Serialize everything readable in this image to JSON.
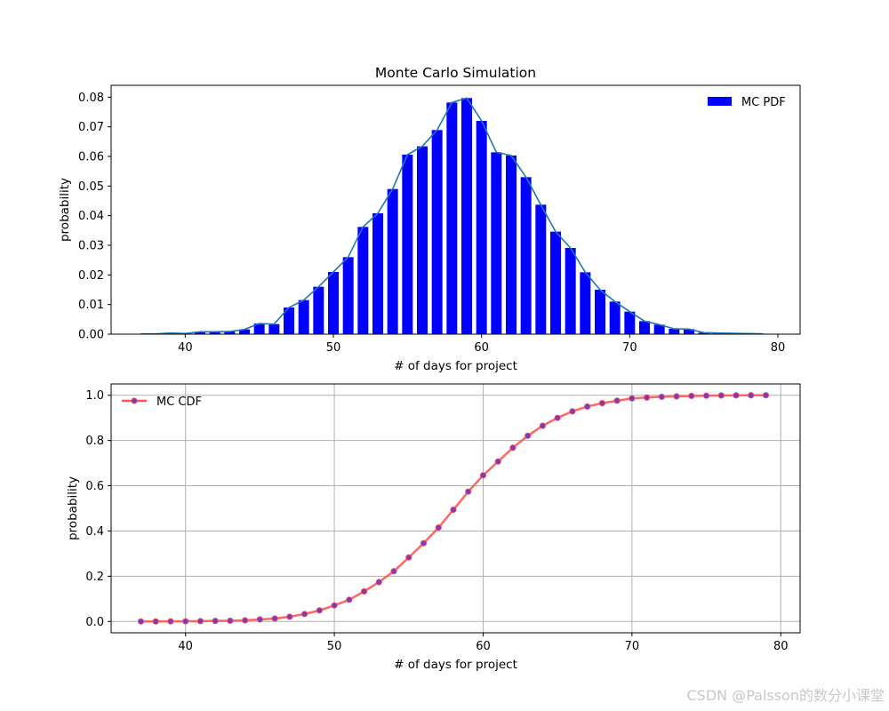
{
  "chart_data": [
    {
      "type": "bar",
      "title": "Monte Carlo Simulation",
      "xlabel": "# of days for project",
      "ylabel": "probability",
      "xlim": [
        35,
        81.5
      ],
      "ylim": [
        0,
        0.084
      ],
      "xticks": [
        40,
        50,
        60,
        70,
        80
      ],
      "yticks": [
        0.0,
        0.01,
        0.02,
        0.03,
        0.04,
        0.05,
        0.06,
        0.07,
        0.08
      ],
      "grid": false,
      "legend": {
        "label": "MC PDF",
        "position": "upper-right"
      },
      "bar_color": "#0000ff",
      "line_color": "#1f77b4",
      "x": [
        37,
        38,
        39,
        40,
        41,
        42,
        43,
        44,
        45,
        46,
        47,
        48,
        49,
        50,
        51,
        52,
        53,
        54,
        55,
        56,
        57,
        58,
        59,
        60,
        61,
        62,
        63,
        64,
        65,
        66,
        67,
        68,
        69,
        70,
        71,
        72,
        73,
        74,
        75,
        76,
        77,
        78,
        79
      ],
      "values": [
        0.0001,
        0.0001,
        0.0004,
        0.0002,
        0.0008,
        0.0008,
        0.0009,
        0.0016,
        0.0036,
        0.0034,
        0.009,
        0.0115,
        0.016,
        0.021,
        0.026,
        0.0362,
        0.0408,
        0.049,
        0.0606,
        0.0634,
        0.0689,
        0.0782,
        0.0797,
        0.072,
        0.0614,
        0.0603,
        0.053,
        0.0437,
        0.0346,
        0.0291,
        0.0209,
        0.015,
        0.011,
        0.0076,
        0.0044,
        0.0032,
        0.0018,
        0.0017,
        0.0005,
        0.0004,
        0.0003,
        0.0002,
        0.0001
      ]
    },
    {
      "type": "line",
      "xlabel": "# of days for project",
      "ylabel": "probability",
      "xlim": [
        35,
        81.3
      ],
      "ylim": [
        -0.05,
        1.05
      ],
      "xticks": [
        40,
        50,
        60,
        70,
        80
      ],
      "yticks": [
        0.0,
        0.2,
        0.4,
        0.6,
        0.8,
        1.0
      ],
      "grid": true,
      "legend": {
        "label": "MC CDF",
        "position": "upper-left"
      },
      "line_color": "#ff5555",
      "marker_color": "#7d3cb5",
      "x": [
        37,
        38,
        39,
        40,
        41,
        42,
        43,
        44,
        45,
        46,
        47,
        48,
        49,
        50,
        51,
        52,
        53,
        54,
        55,
        56,
        57,
        58,
        59,
        60,
        61,
        62,
        63,
        64,
        65,
        66,
        67,
        68,
        69,
        70,
        71,
        72,
        73,
        74,
        75,
        76,
        77,
        78,
        79
      ],
      "values": [
        0.0001,
        0.0002,
        0.0006,
        0.0008,
        0.0016,
        0.0024,
        0.0033,
        0.005,
        0.009,
        0.013,
        0.021,
        0.033,
        0.049,
        0.071,
        0.096,
        0.133,
        0.174,
        0.222,
        0.283,
        0.346,
        0.415,
        0.494,
        0.574,
        0.646,
        0.707,
        0.768,
        0.821,
        0.865,
        0.9,
        0.929,
        0.95,
        0.965,
        0.976,
        0.986,
        0.99,
        0.993,
        0.995,
        0.997,
        0.998,
        0.999,
        0.9995,
        0.9998,
        1.0
      ]
    }
  ],
  "watermark": "CSDN @Palsson的数分小课堂",
  "colors": {
    "axes": "#000000",
    "grid": "#b0b0b0"
  }
}
